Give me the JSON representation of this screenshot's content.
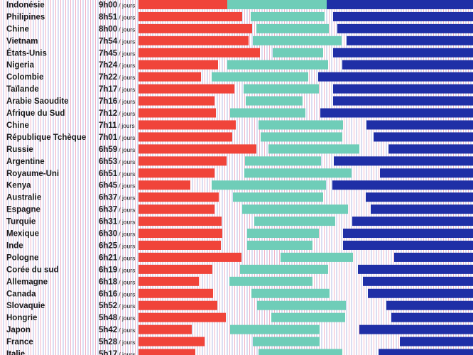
{
  "chart_data": {
    "type": "bar",
    "unit_label": "/ jours",
    "colors": {
      "red": "#f0443a",
      "teal": "#6fcdb8",
      "blue": "#1f2fa6",
      "stripe_pink": "#f1b6c9",
      "stripe_blue": "#b4bde6"
    },
    "rows": [
      {
        "country": "Indonésie",
        "time": "9h00",
        "red": 0.625,
        "teal": [
          0.625,
          1.325
        ],
        "blue": 1.325
      },
      {
        "country": "Philipines",
        "time": "8h51",
        "red": 0.73,
        "teal": [
          0.79,
          1.31
        ],
        "blue": 1.37
      },
      {
        "country": "Chine",
        "time": "8h00",
        "red": 0.8,
        "teal": [
          0.83,
          1.34
        ],
        "blue": 1.4
      },
      {
        "country": "Vietnam",
        "time": "7h54",
        "red": 0.775,
        "teal": [
          0.805,
          1.43
        ],
        "blue": 1.465
      },
      {
        "country": "États-Unis",
        "time": "7h45",
        "red": 0.855,
        "teal": [
          0.945,
          1.3
        ],
        "blue": 1.37
      },
      {
        "country": "Nigeria",
        "time": "7h24",
        "red": 0.56,
        "teal": [
          0.625,
          1.335
        ],
        "blue": 1.435
      },
      {
        "country": "Colombie",
        "time": "7h22",
        "red": 0.44,
        "teal": [
          0.515,
          1.195
        ],
        "blue": 1.265
      },
      {
        "country": "Taïlande",
        "time": "7h17",
        "red": 0.675,
        "teal": [
          0.74,
          1.27
        ],
        "blue": 1.37
      },
      {
        "country": "Arabie Saoudite",
        "time": "7h16",
        "red": 0.535,
        "teal": [
          0.755,
          1.155
        ],
        "blue": 1.37
      },
      {
        "country": "Afrique du Sud",
        "time": "7h12",
        "red": 0.545,
        "teal": [
          0.645,
          1.175
        ],
        "blue": 1.28
      },
      {
        "country": "Chine",
        "time": "7h11",
        "red": 0.685,
        "teal": [
          0.845,
          1.44
        ],
        "blue": 1.605
      },
      {
        "country": "République Tchèque",
        "time": "7h01",
        "red": 0.66,
        "teal": [
          0.86,
          1.435
        ],
        "blue": 1.655
      },
      {
        "country": "Russie",
        "time": "6h59",
        "red": 0.83,
        "teal": [
          0.915,
          1.555
        ],
        "blue": 1.76
      },
      {
        "country": "Argentine",
        "time": "6h53",
        "red": 0.62,
        "teal": [
          0.75,
          1.285
        ],
        "blue": 1.375
      },
      {
        "country": "Royaume-Uni",
        "time": "6h51",
        "red": 0.535,
        "teal": [
          0.745,
          1.5
        ],
        "blue": 1.7
      },
      {
        "country": "Kenya",
        "time": "6h45",
        "red": 0.365,
        "teal": [
          0.515,
          1.32
        ],
        "blue": 1.365
      },
      {
        "country": "Australie",
        "time": "6h37",
        "red": 0.565,
        "teal": [
          0.665,
          1.3
        ],
        "blue": 1.6
      },
      {
        "country": "Espagne",
        "time": "6h37",
        "red": 0.535,
        "teal": [
          0.73,
          1.475
        ],
        "blue": 1.635
      },
      {
        "country": "Turquie",
        "time": "6h31",
        "red": 0.585,
        "teal": [
          0.815,
          1.385
        ],
        "blue": 1.505
      },
      {
        "country": "Mexique",
        "time": "6h30",
        "red": 0.59,
        "teal": [
          0.765,
          1.27
        ],
        "blue": 1.44
      },
      {
        "country": "Inde",
        "time": "6h25",
        "red": 0.58,
        "teal": [
          0.765,
          1.225
        ],
        "blue": 1.44
      },
      {
        "country": "Pologne",
        "time": "6h21",
        "red": 0.725,
        "teal": [
          1.0,
          1.51
        ],
        "blue": 1.8
      },
      {
        "country": "Corée du sud",
        "time": "6h19",
        "red": 0.52,
        "teal": [
          0.715,
          1.335
        ],
        "blue": 1.545
      },
      {
        "country": "Allemagne",
        "time": "6h18",
        "red": 0.425,
        "teal": [
          0.64,
          1.225
        ],
        "blue": 1.58
      },
      {
        "country": "Canada",
        "time": "6h16",
        "red": 0.525,
        "teal": [
          0.795,
          1.345
        ],
        "blue": 1.615
      },
      {
        "country": "Slovaquie",
        "time": "5h52",
        "red": 0.555,
        "teal": [
          0.835,
          1.46
        ],
        "blue": 1.745
      },
      {
        "country": "Hongrie",
        "time": "5h48",
        "red": 0.615,
        "teal": [
          0.935,
          1.455
        ],
        "blue": 1.78
      },
      {
        "country": "Japon",
        "time": "5h42",
        "red": 0.375,
        "teal": [
          0.645,
          1.275
        ],
        "blue": 1.555
      },
      {
        "country": "France",
        "time": "5h28",
        "red": 0.465,
        "teal": [
          0.805,
          1.275
        ],
        "blue": 1.84
      },
      {
        "country": "Italie",
        "time": "5h17",
        "red": 0.4,
        "teal": [
          0.845,
          1.435
        ],
        "blue": 1.69
      }
    ]
  }
}
